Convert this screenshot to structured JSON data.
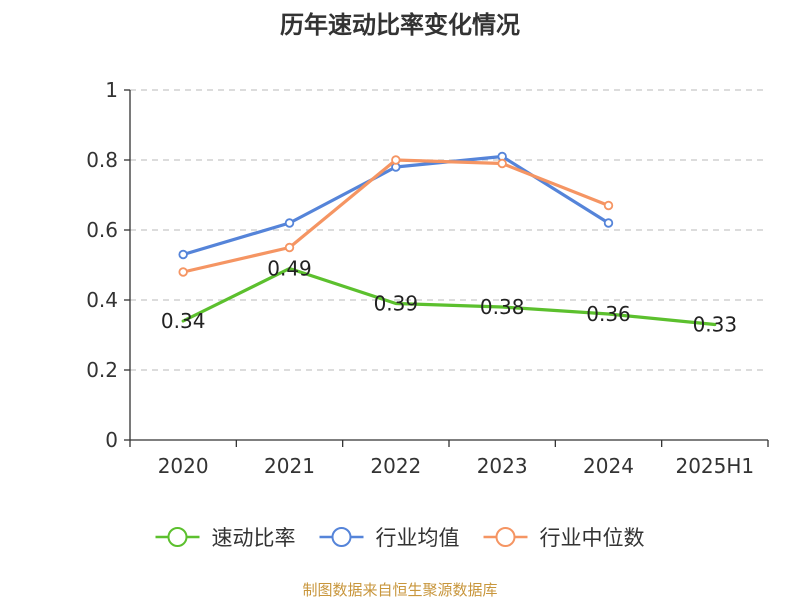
{
  "chart_data": {
    "type": "line",
    "title": "历年速动比率变化情况",
    "categories": [
      "2020",
      "2021",
      "2022",
      "2023",
      "2024",
      "2025H1"
    ],
    "ylim": [
      0,
      1
    ],
    "yticks": [
      "0",
      "0.2",
      "0.4",
      "0.6",
      "0.8",
      "1"
    ],
    "grid": true,
    "legend_position": "bottom",
    "series": [
      {
        "name": "速动比率",
        "color": "#5cc02e",
        "values": [
          0.34,
          0.49,
          0.39,
          0.38,
          0.36,
          0.33
        ],
        "labels": [
          "0.34",
          "0.49",
          "0.39",
          "0.38",
          "0.36",
          "0.33"
        ],
        "show_markers": false
      },
      {
        "name": "行业均值",
        "color": "#5584d9",
        "values": [
          0.53,
          0.62,
          0.78,
          0.81,
          0.62,
          null
        ],
        "show_markers": true
      },
      {
        "name": "行业中位数",
        "color": "#f59563",
        "values": [
          0.48,
          0.55,
          0.8,
          0.79,
          0.67,
          null
        ],
        "show_markers": true
      }
    ]
  },
  "source_text": "制图数据来自恒生聚源数据库"
}
